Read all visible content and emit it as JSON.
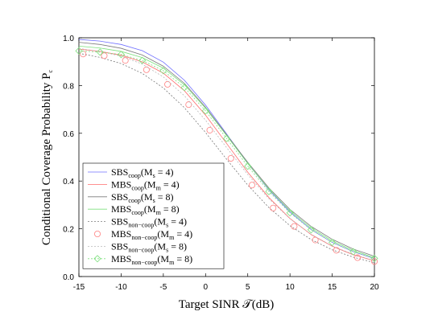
{
  "chart_data": {
    "type": "line",
    "xlabel": "Target SINR 𝒯(dB)",
    "ylabel": "Conditional Coverage Probability P",
    "ylabel_sub": "c",
    "xlim": [
      -15,
      20
    ],
    "ylim": [
      0,
      1.0
    ],
    "xticks": [
      "-15",
      "-10",
      "-5",
      "0",
      "5",
      "10",
      "15",
      "20"
    ],
    "yticks": [
      "0.0",
      "0.2",
      "0.4",
      "0.6",
      "0.8",
      "1.0"
    ],
    "grid": false,
    "legend_position": "bottom-left",
    "series": [
      {
        "name": "SBS",
        "sub": "coop",
        "arg": "(M",
        "argsub": "s",
        "argend": " = 4)",
        "color": "#6f6fff",
        "dash": "",
        "marker": "none",
        "x": [
          -15,
          -12.5,
          -10,
          -7.5,
          -5,
          -2.5,
          0,
          2.5,
          5,
          7.5,
          10,
          12.5,
          15,
          17.5,
          20
        ],
        "y": [
          0.993,
          0.986,
          0.972,
          0.946,
          0.898,
          0.822,
          0.718,
          0.597,
          0.474,
          0.363,
          0.27,
          0.197,
          0.143,
          0.104,
          0.075
        ]
      },
      {
        "name": "MBS",
        "sub": "coop",
        "arg": "(M",
        "argsub": "m",
        "argend": " = 4)",
        "color": "#ff6b6b",
        "dash": "",
        "marker": "none",
        "x": [
          -15,
          -12.5,
          -10,
          -7.5,
          -5,
          -2.5,
          0,
          2.5,
          5,
          7.5,
          10,
          12.5,
          15,
          17.5,
          20
        ],
        "y": [
          0.953,
          0.943,
          0.927,
          0.899,
          0.852,
          0.778,
          0.676,
          0.557,
          0.437,
          0.331,
          0.243,
          0.176,
          0.127,
          0.091,
          0.066
        ]
      },
      {
        "name": "SBS",
        "sub": "coop",
        "arg": "(M",
        "argsub": "s",
        "argend": " = 8)",
        "color": "#7a7a7a",
        "dash": "",
        "marker": "none",
        "x": [
          -15,
          -12.5,
          -10,
          -7.5,
          -5,
          -2.5,
          0,
          2.5,
          5,
          7.5,
          10,
          12.5,
          15,
          17.5,
          20
        ],
        "y": [
          0.981,
          0.972,
          0.956,
          0.928,
          0.881,
          0.809,
          0.709,
          0.594,
          0.478,
          0.371,
          0.281,
          0.21,
          0.156,
          0.115,
          0.085
        ]
      },
      {
        "name": "MBS",
        "sub": "coop",
        "arg": "(M",
        "argsub": "m",
        "argend": " = 8)",
        "color": "#7ee07e",
        "dash": "",
        "marker": "none",
        "x": [
          -15,
          -12.5,
          -10,
          -7.5,
          -5,
          -2.5,
          0,
          2.5,
          5,
          7.5,
          10,
          12.5,
          15,
          17.5,
          20
        ],
        "y": [
          0.965,
          0.957,
          0.943,
          0.917,
          0.873,
          0.803,
          0.705,
          0.59,
          0.473,
          0.366,
          0.275,
          0.203,
          0.149,
          0.109,
          0.079
        ]
      },
      {
        "name": "SBS",
        "sub": "non−coop",
        "arg": "(M",
        "argsub": "s",
        "argend": " = 4)",
        "color": "#7a7a7a",
        "dash": "2 2",
        "marker": "none",
        "x": [
          -15,
          -12.5,
          -10,
          -7.5,
          -5,
          -2.5,
          0,
          2.5,
          5,
          7.5,
          10,
          12.5,
          15,
          17.5,
          20
        ],
        "y": [
          0.935,
          0.918,
          0.892,
          0.851,
          0.79,
          0.707,
          0.603,
          0.491,
          0.383,
          0.289,
          0.213,
          0.155,
          0.112,
          0.081,
          0.058
        ]
      },
      {
        "name": "MBS",
        "sub": "non−coop",
        "arg": "(M",
        "argsub": "m",
        "argend": " = 4)",
        "color": "#ff8080",
        "dash": "",
        "marker": "circle",
        "line": false,
        "x": [
          -14.5,
          -12,
          -9.5,
          -7,
          -4.5,
          -2,
          0.5,
          3,
          5.5,
          8,
          10.5,
          13,
          15.5,
          18,
          20
        ],
        "y": [
          0.932,
          0.925,
          0.905,
          0.866,
          0.805,
          0.72,
          0.613,
          0.495,
          0.383,
          0.287,
          0.21,
          0.153,
          0.11,
          0.079,
          0.063
        ]
      },
      {
        "name": "SBS",
        "sub": "non−coop",
        "arg": "(M",
        "argsub": "s",
        "argend": " = 8)",
        "color": "#b8b8b8",
        "dash": "2 2",
        "marker": "none",
        "x": [
          -15,
          -12.5,
          -10,
          -7.5,
          -5,
          -2.5,
          0,
          2.5,
          5,
          7.5,
          10,
          12.5,
          15,
          17.5,
          20
        ],
        "y": [
          0.955,
          0.943,
          0.923,
          0.89,
          0.836,
          0.757,
          0.655,
          0.54,
          0.427,
          0.326,
          0.242,
          0.177,
          0.128,
          0.093,
          0.067
        ]
      },
      {
        "name": "MBS",
        "sub": "non−coop",
        "arg": "(M",
        "argsub": "m",
        "argend": " = 8)",
        "color": "#7ee07e",
        "dash": "2 2",
        "marker": "diamond",
        "x": [
          -15,
          -12.5,
          -10,
          -7.5,
          -5,
          -2.5,
          0,
          2.5,
          5,
          7.5,
          10,
          12.5,
          15,
          17.5,
          20
        ],
        "y": [
          0.945,
          0.94,
          0.93,
          0.905,
          0.862,
          0.792,
          0.694,
          0.578,
          0.462,
          0.356,
          0.267,
          0.196,
          0.143,
          0.104,
          0.076
        ]
      }
    ]
  }
}
